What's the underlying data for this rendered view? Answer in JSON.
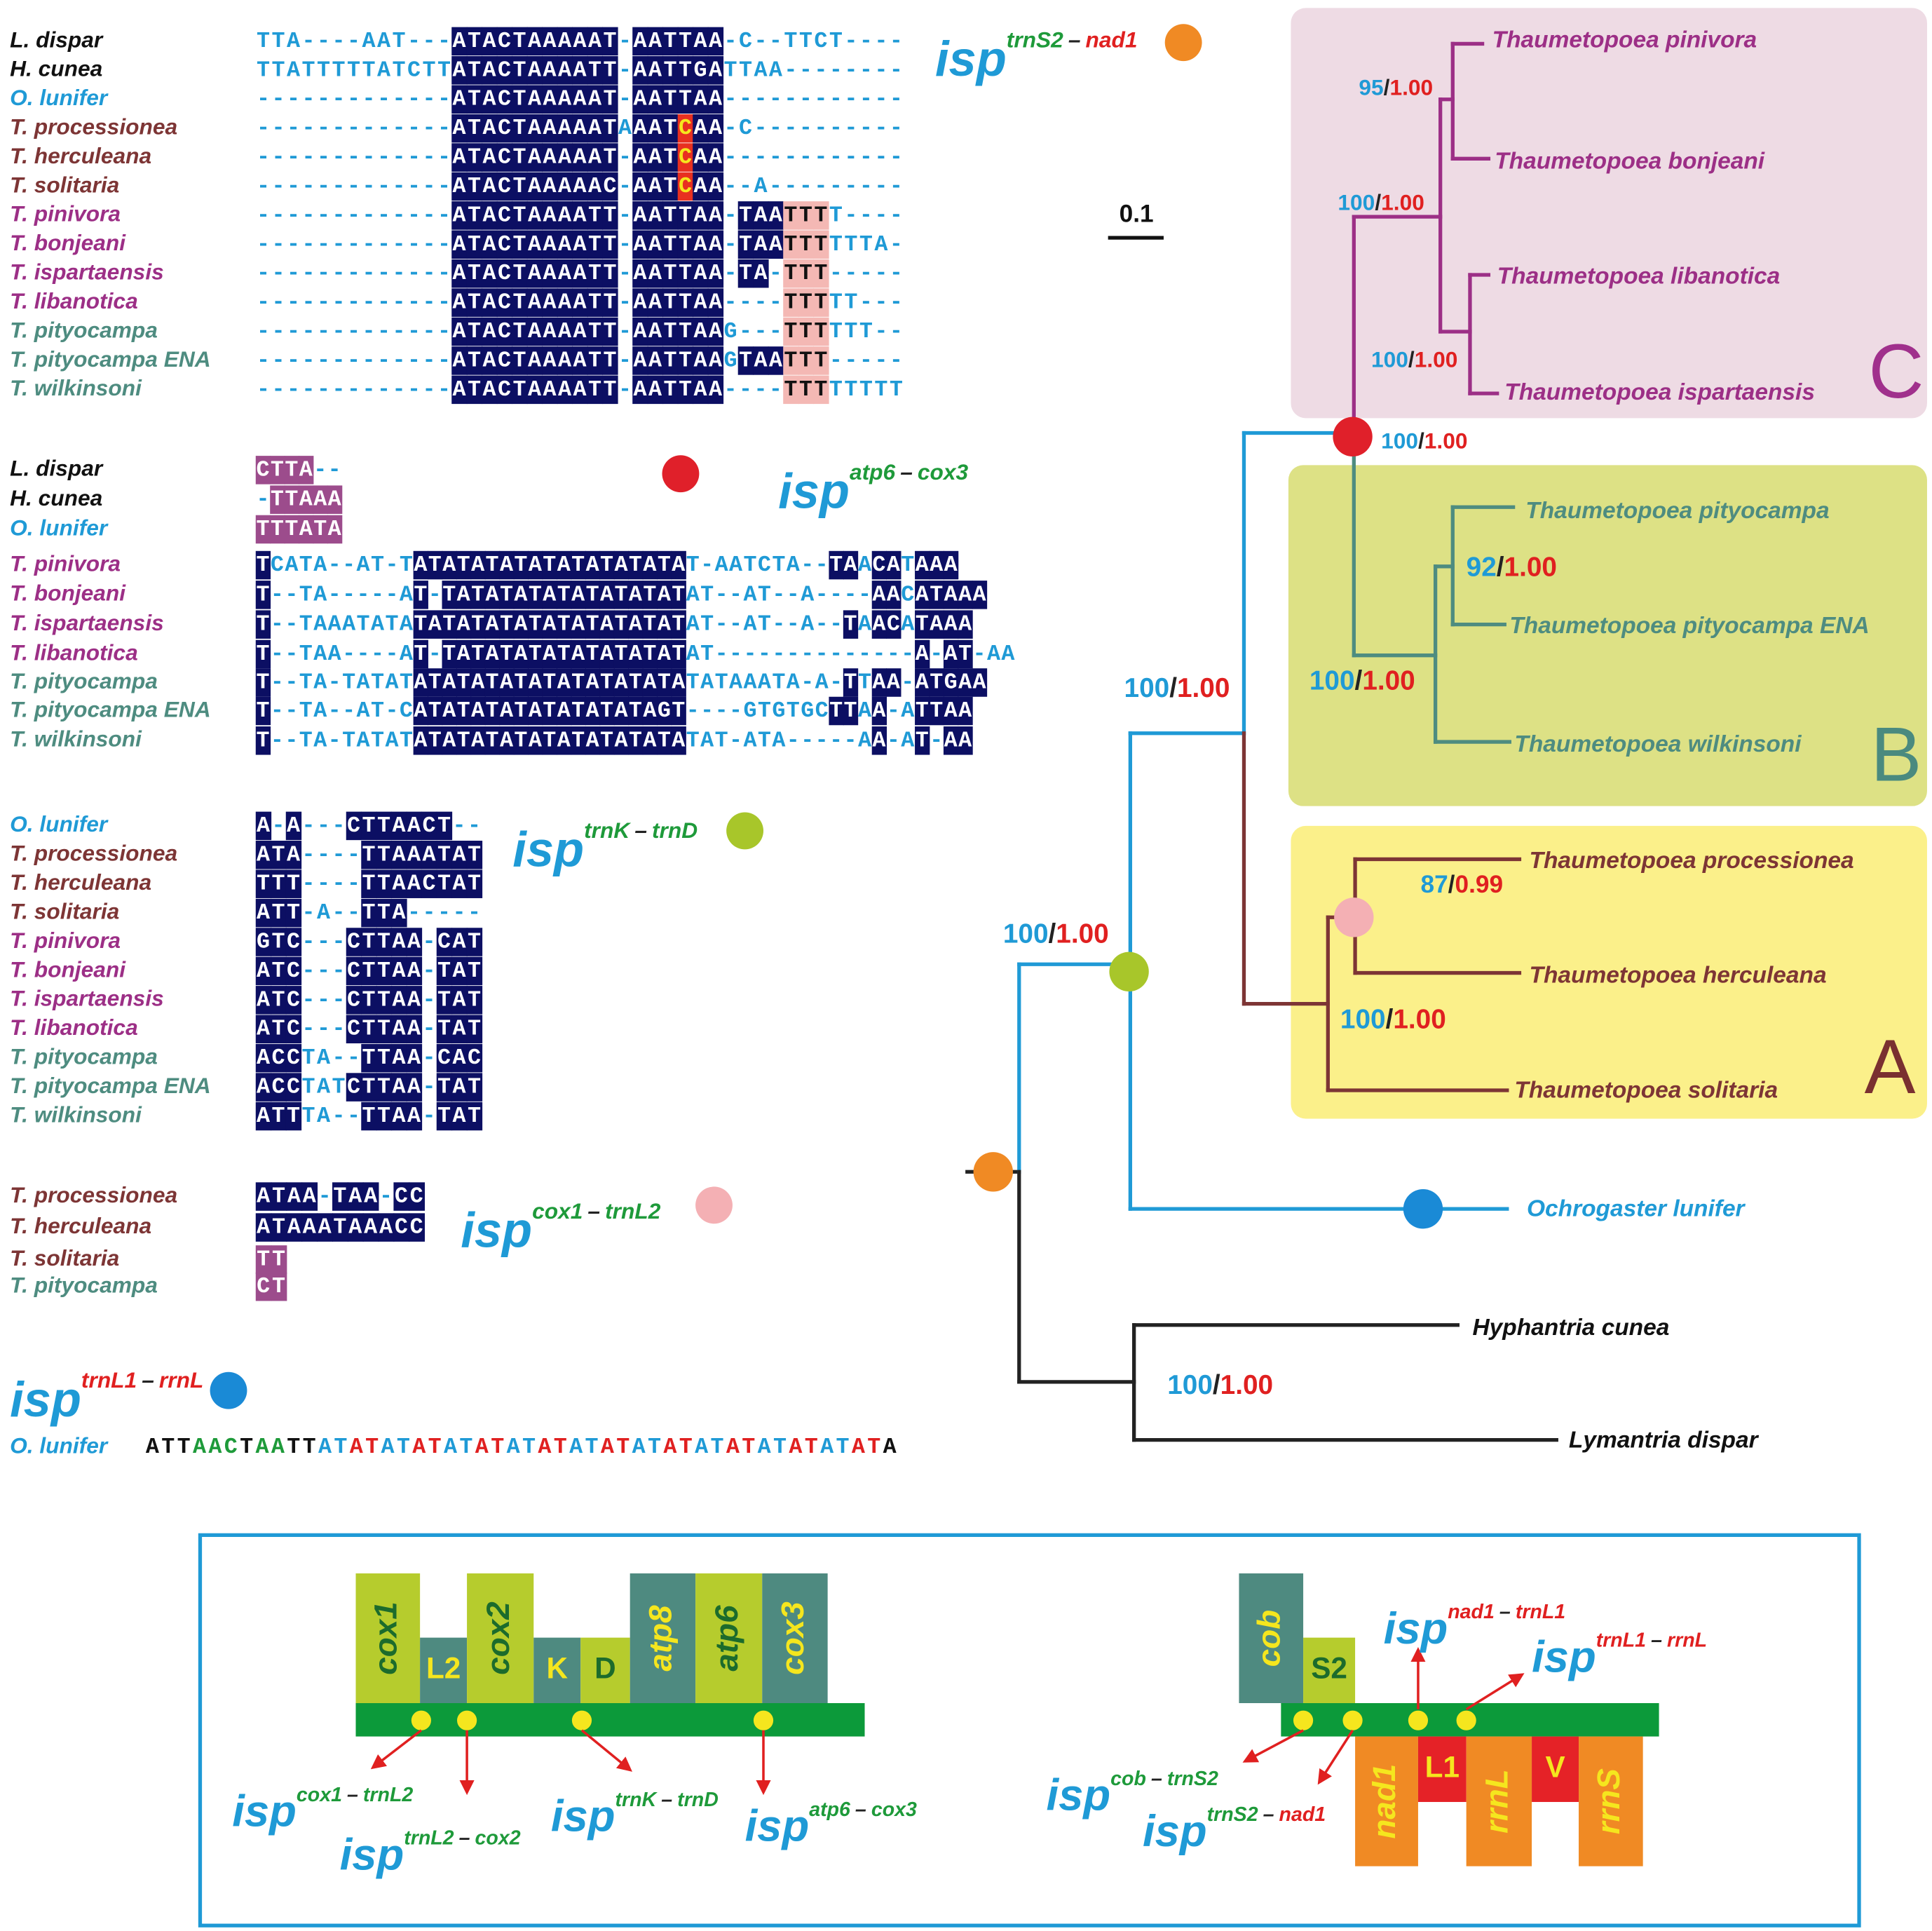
{
  "alignments": [
    {
      "title": {
        "main": "isp",
        "from": "trnS2",
        "sep": "–",
        "to": "nad1",
        "from_color": "#1e9a3a",
        "to_color": "#e02020"
      },
      "marker_color": "#f08a24",
      "rows": [
        {
          "name": "L. dispar",
          "color": "#111111",
          "seq": "TTA----AAT---ATACTAAAAAT-AATTAA-C--TTCT----"
        },
        {
          "name": "H. cunea",
          "color": "#111111",
          "seq": "TTATTTTTATCTTATACTAAAATT-AATTGATTAA--------"
        },
        {
          "name": "O. lunifer",
          "color": "#1f9ad6",
          "seq": "-------------ATACTAAAAAT-AATTAA------------"
        },
        {
          "name": "T. processionea",
          "color": "#7d3535",
          "seq": "-------------ATACTAAAAATAAATCAA-C----------"
        },
        {
          "name": "T. herculeana",
          "color": "#7d3535",
          "seq": "-------------ATACTAAAAAT-AATCAA------------"
        },
        {
          "name": "T. solitaria",
          "color": "#7d3535",
          "seq": "-------------ATACTAAAAAC-AATCAA--A---------"
        },
        {
          "name": "T. pinivora",
          "color": "#9c2f86",
          "seq": "-------------ATACTAAAATT-AATTAA-TAATTTT----"
        },
        {
          "name": "T. bonjeani",
          "color": "#9c2f86",
          "seq": "-------------ATACTAAAATT-AATTAA-TAATTTTTTA-"
        },
        {
          "name": "T. ispartaensis",
          "color": "#9c2f86",
          "seq": "-------------ATACTAAAATT-AATTAA-TA-TTT-----"
        },
        {
          "name": "T. libanotica",
          "color": "#9c2f86",
          "seq": "-------------ATACTAAAATT-AATTAA----TTTTT---"
        },
        {
          "name": "T. pityocampa",
          "color": "#4e8c80",
          "seq": "-------------ATACTAAAATT-AATTAAG---TTTTTT--"
        },
        {
          "name": "T. pityocampa ENA",
          "color": "#4e8c80",
          "seq": "-------------ATACTAAAATT-AATTAAGTAATTT-----"
        },
        {
          "name": "T. wilkinsoni",
          "color": "#4e8c80",
          "seq": "-------------ATACTAAAATT-AATTAA----TTTTTTTT"
        }
      ]
    },
    {
      "title": {
        "main": "isp",
        "from": "atp6",
        "sep": "–",
        "to": "cox3",
        "from_color": "#1e9a3a",
        "to_color": "#1e9a3a"
      },
      "marker_color": "#e0202a",
      "rows": [
        {
          "name": "L. dispar",
          "color": "#111111",
          "seq": "CTTA--"
        },
        {
          "name": "H. cunea",
          "color": "#111111",
          "seq": "-TTAAA"
        },
        {
          "name": "O. lunifer",
          "color": "#1f9ad6",
          "seq": "TTTATA"
        },
        {
          "name": "T. pinivora",
          "color": "#9c2f86",
          "seq": "TCATA--AT-TATATATATATATATATATAT-AATCTA--TAACATAAA"
        },
        {
          "name": "T. bonjeani",
          "color": "#9c2f86",
          "seq": "T--TA-----AT-TATATATATATATATATAT--AT--A----AACATAAA"
        },
        {
          "name": "T. ispartaensis",
          "color": "#9c2f86",
          "seq": "T--TAAATATATATATATATATATATATATAT--AT--A--TAACATAAA"
        },
        {
          "name": "T. libanotica",
          "color": "#9c2f86",
          "seq": "T--TAA----AT-TATATATATATATATATAT--------------A-AT-AA"
        },
        {
          "name": "T. pityocampa",
          "color": "#4e8c80",
          "seq": "T--TA-TATATATATATATATATATATATATATAAATA-A-TTAA-ATGAA"
        },
        {
          "name": "T. pityocampa ENA",
          "color": "#4e8c80",
          "seq": "T--TA--AT-CATATATATATATATATAGT----GTGTGCTTAA-ATTAA"
        },
        {
          "name": "T. wilkinsoni",
          "color": "#4e8c80",
          "seq": "T--TA-TATATATATATATATATATATATATAT-ATA-----AA-AT-AA"
        }
      ]
    },
    {
      "title": {
        "main": "isp",
        "from": "trnK",
        "sep": "–",
        "to": "trnD",
        "from_color": "#1e9a3a",
        "to_color": "#1e9a3a"
      },
      "marker_color": "#a8c62a",
      "rows": [
        {
          "name": "O. lunifer",
          "color": "#1f9ad6",
          "seq": "A-A---CTTAACT--"
        },
        {
          "name": "T. processionea",
          "color": "#7d3535",
          "seq": "ATA----TTAAATAT"
        },
        {
          "name": "T. herculeana",
          "color": "#7d3535",
          "seq": "TTT----TTAACTAT"
        },
        {
          "name": "T. solitaria",
          "color": "#7d3535",
          "seq": "ATT-A--TTA-----"
        },
        {
          "name": "T. pinivora",
          "color": "#9c2f86",
          "seq": "GTC---CTTAA-CAT"
        },
        {
          "name": "T. bonjeani",
          "color": "#9c2f86",
          "seq": "ATC---CTTAA-TAT"
        },
        {
          "name": "T. ispartaensis",
          "color": "#9c2f86",
          "seq": "ATC---CTTAA-TAT"
        },
        {
          "name": "T. libanotica",
          "color": "#9c2f86",
          "seq": "ATC---CTTAA-TAT"
        },
        {
          "name": "T. pityocampa",
          "color": "#4e8c80",
          "seq": "ACCTA--TTAA-CAC"
        },
        {
          "name": "T. pityocampa ENA",
          "color": "#4e8c80",
          "seq": "ACCTATCTTAA-TAT"
        },
        {
          "name": "T. wilkinsoni",
          "color": "#4e8c80",
          "seq": "ATTTA--TTAA-TAT"
        }
      ]
    },
    {
      "title": {
        "main": "isp",
        "from": "cox1",
        "sep": "–",
        "to": "trnL2",
        "from_color": "#1e9a3a",
        "to_color": "#1e9a3a"
      },
      "marker_color": "#f4b0b4",
      "rows": [
        {
          "name": "T. processionea",
          "color": "#7d3535",
          "seq": "ATAA-TAA-CC"
        },
        {
          "name": "T. herculeana",
          "color": "#7d3535",
          "seq": "ATAAATAAACC"
        },
        {
          "name": "T. solitaria",
          "color": "#7d3535",
          "seq": "TT"
        },
        {
          "name": "T. pityocampa",
          "color": "#4e8c80",
          "seq": "CT"
        }
      ]
    },
    {
      "title": {
        "main": "isp",
        "from": "trnL1",
        "sep": "–",
        "to": "rrnL",
        "from_color": "#e02020",
        "to_color": "#e02020"
      },
      "marker_color": "#1a8ad6",
      "rows": [
        {
          "name": "O. lunifer",
          "color": "#1f9ad6",
          "seq": "ATTAACTAATTATATATATATATATATATATATATATATATATATATA"
        }
      ]
    }
  ],
  "tree": {
    "scale": "0.1",
    "taxa": [
      {
        "label": "Thaumetopoea pinivora",
        "color": "#9c2f86"
      },
      {
        "label": "Thaumetopoea bonjeani",
        "color": "#9c2f86"
      },
      {
        "label": "Thaumetopoea libanotica",
        "color": "#9c2f86"
      },
      {
        "label": "Thaumetopoea ispartaensis",
        "color": "#9c2f86"
      },
      {
        "label": "Thaumetopoea pityocampa",
        "color": "#4e8c80"
      },
      {
        "label": "Thaumetopoea pityocampa ENA",
        "color": "#4e8c80"
      },
      {
        "label": "Thaumetopoea wilkinsoni",
        "color": "#4e8c80"
      },
      {
        "label": "Thaumetopoea processionea",
        "color": "#7d3535"
      },
      {
        "label": "Thaumetopoea herculeana",
        "color": "#7d3535"
      },
      {
        "label": "Thaumetopoea solitaria",
        "color": "#7d3535"
      },
      {
        "label": "Ochrogaster lunifer",
        "color": "#1f9ad6"
      },
      {
        "label": "Hyphantria cunea",
        "color": "#111111"
      },
      {
        "label": "Lymantria dispar",
        "color": "#111111"
      }
    ],
    "support": [
      {
        "bs": "95",
        "sep": "/",
        "pp": "1.00"
      },
      {
        "bs": "100",
        "sep": "/",
        "pp": "1.00"
      },
      {
        "bs": "100",
        "sep": "/",
        "pp": "1.00"
      },
      {
        "bs": "100",
        "sep": "/",
        "pp": "1.00"
      },
      {
        "bs": "92",
        "sep": "/",
        "pp": "1.00"
      },
      {
        "bs": "100",
        "sep": "/",
        "pp": "1.00"
      },
      {
        "bs": "100",
        "sep": "/",
        "pp": "1.00"
      },
      {
        "bs": "87",
        "sep": "/",
        "pp": "0.99"
      },
      {
        "bs": "100",
        "sep": "/",
        "pp": "1.00"
      },
      {
        "bs": "100",
        "sep": "/",
        "pp": "1.00"
      },
      {
        "bs": "100",
        "sep": "/",
        "pp": "1.00"
      }
    ],
    "clades": [
      "C",
      "B",
      "A"
    ]
  },
  "gene_map": {
    "left_genes": [
      "cox1",
      "L2",
      "cox2",
      "K",
      "D",
      "atp8",
      "atp6",
      "cox3"
    ],
    "right_genes": [
      "cob",
      "S2",
      "nad1",
      "L1",
      "rrnL",
      "V",
      "rrnS"
    ],
    "isp_labels": [
      {
        "main": "isp",
        "from": "cox1",
        "sep": "–",
        "to": "trnL2",
        "from_color": "#1e9a3a",
        "to_color": "#1e9a3a"
      },
      {
        "main": "isp",
        "from": "trnL2",
        "sep": "–",
        "to": "cox2",
        "from_color": "#1e9a3a",
        "to_color": "#1e9a3a"
      },
      {
        "main": "isp",
        "from": "trnK",
        "sep": "–",
        "to": "trnD",
        "from_color": "#1e9a3a",
        "to_color": "#1e9a3a"
      },
      {
        "main": "isp",
        "from": "atp6",
        "sep": "–",
        "to": "cox3",
        "from_color": "#1e9a3a",
        "to_color": "#1e9a3a"
      },
      {
        "main": "isp",
        "from": "nad1",
        "sep": "–",
        "to": "trnL1",
        "from_color": "#e02020",
        "to_color": "#e02020"
      },
      {
        "main": "isp",
        "from": "trnL1",
        "sep": "–",
        "to": "rrnL",
        "from_color": "#e02020",
        "to_color": "#e02020"
      },
      {
        "main": "isp",
        "from": "cob",
        "sep": "–",
        "to": "trnS2",
        "from_color": "#1e9a3a",
        "to_color": "#1e9a3a"
      },
      {
        "main": "isp",
        "from": "trnS2",
        "sep": "–",
        "to": "nad1",
        "from_color": "#1e9a3a",
        "to_color": "#e02020"
      }
    ]
  }
}
